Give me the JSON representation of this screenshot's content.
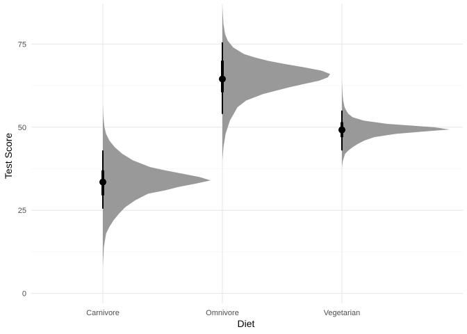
{
  "chart_data": {
    "type": "halfeye",
    "xlabel": "Diet",
    "ylabel": "Test Score",
    "categories": [
      "Carnivore",
      "Omnivore",
      "Vegetarian"
    ],
    "ylim": [
      -3,
      87
    ],
    "yticks": [
      0,
      25,
      50,
      75
    ],
    "grid": true,
    "legend": "none",
    "colors": {
      "slab": "#999999",
      "point": "#000000",
      "interval": "#000000",
      "grid": "#e6e6e6"
    },
    "series": [
      {
        "category": "Carnivore",
        "median": 33.5,
        "interval_66": [
          29.5,
          37
        ],
        "interval_95": [
          25.5,
          43
        ],
        "slab_range": [
          8,
          57
        ],
        "density": [
          [
            8,
            0.0
          ],
          [
            14,
            0.01
          ],
          [
            18,
            0.03
          ],
          [
            20,
            0.06
          ],
          [
            22,
            0.1
          ],
          [
            24,
            0.15
          ],
          [
            26,
            0.21
          ],
          [
            28,
            0.3
          ],
          [
            30,
            0.42
          ],
          [
            31,
            0.58
          ],
          [
            32,
            0.7
          ],
          [
            33,
            0.86
          ],
          [
            34,
            1.0
          ],
          [
            35,
            0.9
          ],
          [
            36,
            0.74
          ],
          [
            37,
            0.58
          ],
          [
            38,
            0.44
          ],
          [
            40,
            0.28
          ],
          [
            42,
            0.18
          ],
          [
            44,
            0.11
          ],
          [
            46,
            0.06
          ],
          [
            48,
            0.03
          ],
          [
            50,
            0.015
          ],
          [
            53,
            0.005
          ],
          [
            57,
            0.0
          ]
        ]
      },
      {
        "category": "Omnivore",
        "median": 64.5,
        "interval_66": [
          60.5,
          70
        ],
        "interval_95": [
          54,
          75.5
        ],
        "slab_range": [
          40,
          86
        ],
        "density": [
          [
            40,
            0.0
          ],
          [
            44,
            0.01
          ],
          [
            48,
            0.03
          ],
          [
            52,
            0.07
          ],
          [
            56,
            0.14
          ],
          [
            58,
            0.22
          ],
          [
            60,
            0.38
          ],
          [
            61,
            0.5
          ],
          [
            62,
            0.62
          ],
          [
            63,
            0.76
          ],
          [
            64,
            0.9
          ],
          [
            65,
            0.98
          ],
          [
            66,
            1.0
          ],
          [
            67,
            0.92
          ],
          [
            68,
            0.76
          ],
          [
            69,
            0.58
          ],
          [
            70,
            0.42
          ],
          [
            71,
            0.3
          ],
          [
            72,
            0.2
          ],
          [
            74,
            0.1
          ],
          [
            76,
            0.05
          ],
          [
            78,
            0.025
          ],
          [
            81,
            0.01
          ],
          [
            86,
            0.0
          ]
        ]
      },
      {
        "category": "Vegetarian",
        "median": 49.2,
        "interval_66": [
          47,
          51.5
        ],
        "interval_95": [
          43,
          55
        ],
        "slab_range": [
          38,
          64
        ],
        "density": [
          [
            38,
            0.0
          ],
          [
            40,
            0.01
          ],
          [
            42,
            0.03
          ],
          [
            43,
            0.06
          ],
          [
            44,
            0.1
          ],
          [
            45,
            0.15
          ],
          [
            46,
            0.21
          ],
          [
            47,
            0.3
          ],
          [
            48,
            0.5
          ],
          [
            48.8,
            0.8
          ],
          [
            49.3,
            1.0
          ],
          [
            50,
            0.85
          ],
          [
            51,
            0.42
          ],
          [
            52,
            0.2
          ],
          [
            53,
            0.1
          ],
          [
            54,
            0.06
          ],
          [
            55,
            0.04
          ],
          [
            56,
            0.025
          ],
          [
            58,
            0.012
          ],
          [
            60,
            0.006
          ],
          [
            64,
            0.0
          ]
        ]
      }
    ]
  }
}
